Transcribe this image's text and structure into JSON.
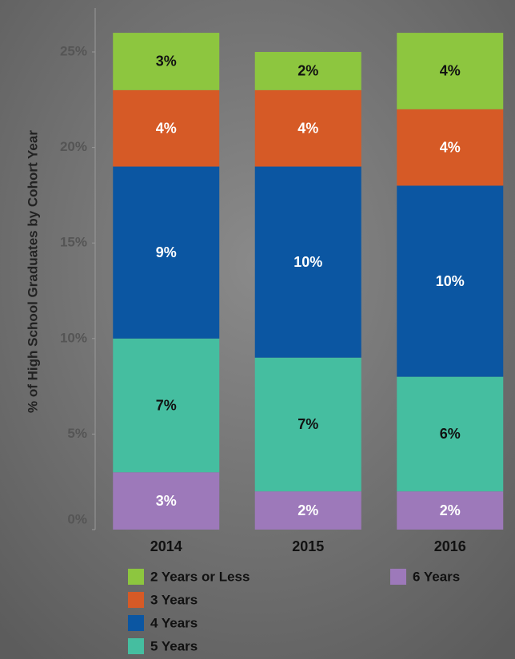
{
  "chart_data": {
    "type": "stacked_bar",
    "y_label": "% of High School Graduates by Cohort Year",
    "categories": [
      "2014",
      "2015",
      "2016"
    ],
    "series": [
      {
        "name": "2 Years or Less",
        "color": "#8dc63f",
        "values": [
          3,
          2,
          4
        ],
        "value_labels": [
          "3%",
          "2%",
          "4%"
        ]
      },
      {
        "name": "3 Years",
        "color": "#d65a26",
        "values": [
          4,
          4,
          4
        ],
        "value_labels": [
          "4%",
          "4%",
          "4%"
        ]
      },
      {
        "name": "4 Years",
        "color": "#0b56a2",
        "values": [
          9,
          10,
          10
        ],
        "value_labels": [
          "9%",
          "10%",
          "10%"
        ]
      },
      {
        "name": "5 Years",
        "color": "#45bea0",
        "values": [
          7,
          7,
          6
        ],
        "value_labels": [
          "7%",
          "7%",
          "6%"
        ]
      },
      {
        "name": "6 Years",
        "color": "#9d79ba",
        "values": [
          3,
          2,
          2
        ],
        "value_labels": [
          "3%",
          "2%",
          "2%"
        ]
      }
    ],
    "ylim": [
      0,
      27.3
    ],
    "yticks": [
      {
        "value": 0,
        "label": "0%"
      },
      {
        "value": 5,
        "label": "5%"
      },
      {
        "value": 10,
        "label": "10%"
      },
      {
        "value": 15,
        "label": "15%"
      },
      {
        "value": 20,
        "label": "20%"
      },
      {
        "value": 25,
        "label": "25%"
      }
    ],
    "grid": false
  }
}
